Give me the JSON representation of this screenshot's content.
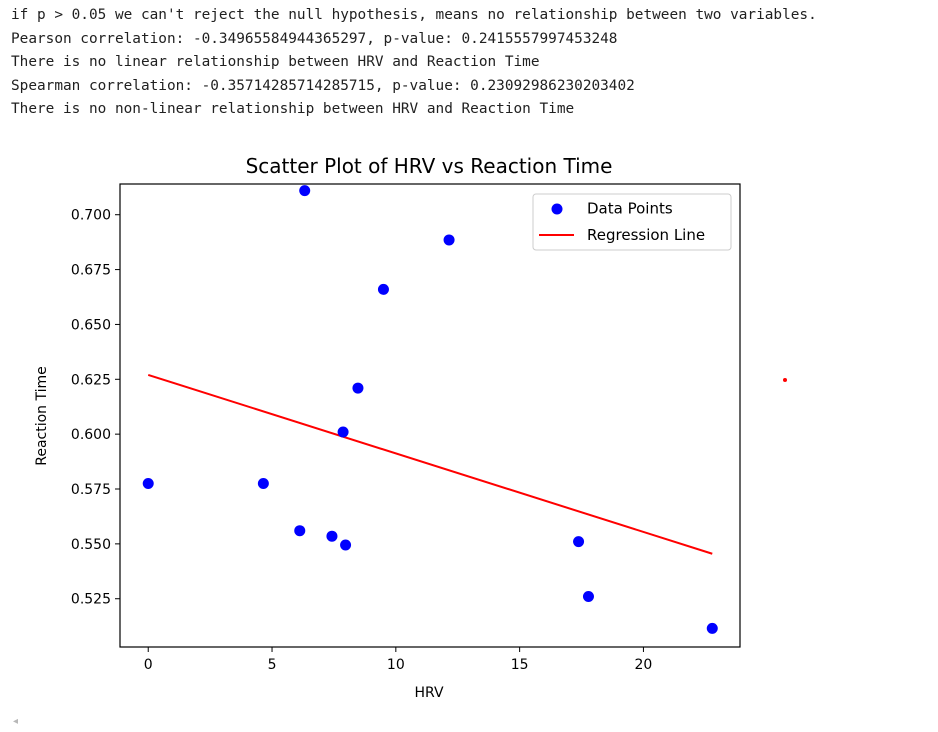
{
  "output": {
    "lines": [
      "if p > 0.05 we can't reject the null hypothesis, means no relationship between two variables.",
      "Pearson correlation: -0.34965584944365297, p-value: 0.2415557997453248",
      "There is no linear relationship between HRV and Reaction Time",
      "Spearman correlation: -0.35714285714285715, p-value: 0.23092986230203402",
      "There is no non-linear relationship between HRV and Reaction Time"
    ]
  },
  "chart_data": {
    "type": "scatter",
    "title": "Scatter Plot of HRV vs Reaction Time",
    "xlabel": "HRV",
    "ylabel": "Reaction Time",
    "xlim": [
      -1.14,
      23.9
    ],
    "ylim": [
      0.503,
      0.714
    ],
    "xticks": [
      0,
      5,
      10,
      15,
      20
    ],
    "yticks": [
      0.525,
      0.55,
      0.575,
      0.6,
      0.625,
      0.65,
      0.675,
      0.7
    ],
    "ytick_labels": [
      "0.525",
      "0.550",
      "0.575",
      "0.600",
      "0.625",
      "0.650",
      "0.675",
      "0.700"
    ],
    "grid": false,
    "legend_position": "top-right",
    "series": [
      {
        "name": "Data Points",
        "kind": "scatter",
        "color": "#0000ff",
        "points": [
          [
            0.0,
            0.5775
          ],
          [
            4.65,
            0.5775
          ],
          [
            6.12,
            0.556
          ],
          [
            6.32,
            0.711
          ],
          [
            7.42,
            0.5535
          ],
          [
            7.87,
            0.601
          ],
          [
            7.97,
            0.5495
          ],
          [
            8.47,
            0.621
          ],
          [
            9.5,
            0.666
          ],
          [
            12.15,
            0.6885
          ],
          [
            17.38,
            0.551
          ],
          [
            17.78,
            0.526
          ],
          [
            22.78,
            0.5115
          ]
        ]
      },
      {
        "name": "Regression Line",
        "kind": "line",
        "color": "#ff0000",
        "x": [
          0.0,
          22.78
        ],
        "y": [
          0.627,
          0.5455
        ]
      }
    ]
  },
  "ui": {
    "scroll_caret": "◂",
    "marker_color": "#ff0000"
  }
}
